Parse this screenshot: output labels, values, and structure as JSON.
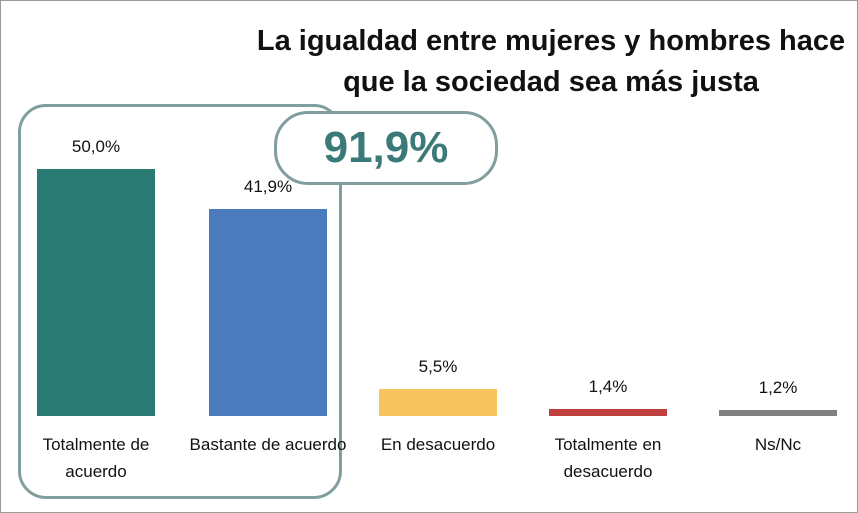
{
  "chart_data": {
    "type": "bar",
    "title": "La igualdad entre mujeres y hombres hace que la sociedad sea más justa",
    "annotation": "91,9%",
    "categories": [
      "Totalmente de acuerdo",
      "Bastante de acuerdo",
      "En desacuerdo",
      "Totalmente en desacuerdo",
      "Ns/Nc"
    ],
    "values": [
      50.0,
      41.9,
      5.5,
      1.4,
      1.2
    ],
    "value_labels": [
      "50,0%",
      "41,9%",
      "5,5%",
      "1,4%",
      "1,2%"
    ],
    "colors": [
      "#2a7b73",
      "#4a7bbd",
      "#f7c55f",
      "#c0403f",
      "#808080"
    ]
  }
}
